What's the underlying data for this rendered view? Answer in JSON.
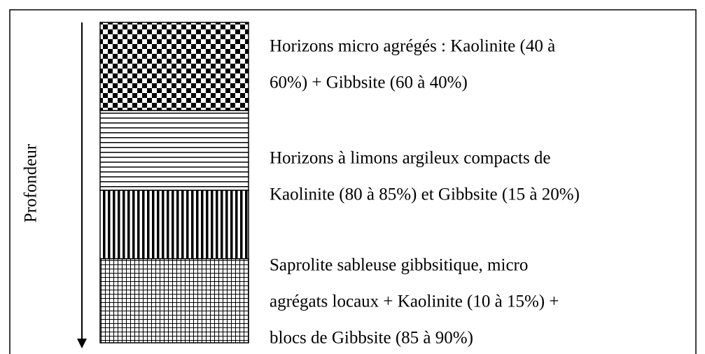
{
  "axis_label": "Profondeur",
  "layers": [
    {
      "lines": [
        "Horizons micro agrégés : Kaolinite (40 à",
        "60%) + Gibbsite (60 à 40%)"
      ]
    },
    {
      "lines": [
        "Horizons à limons argileux compacts de",
        "Kaolinite (80 à 85%) et Gibbsite (15 à 20%)"
      ]
    },
    {
      "lines": [
        "Saprolite sableuse gibbsitique, micro",
        "agrégats locaux + Kaolinite (10 à 15%) +",
        "blocs de Gibbsite (85 à 90%)"
      ]
    }
  ]
}
